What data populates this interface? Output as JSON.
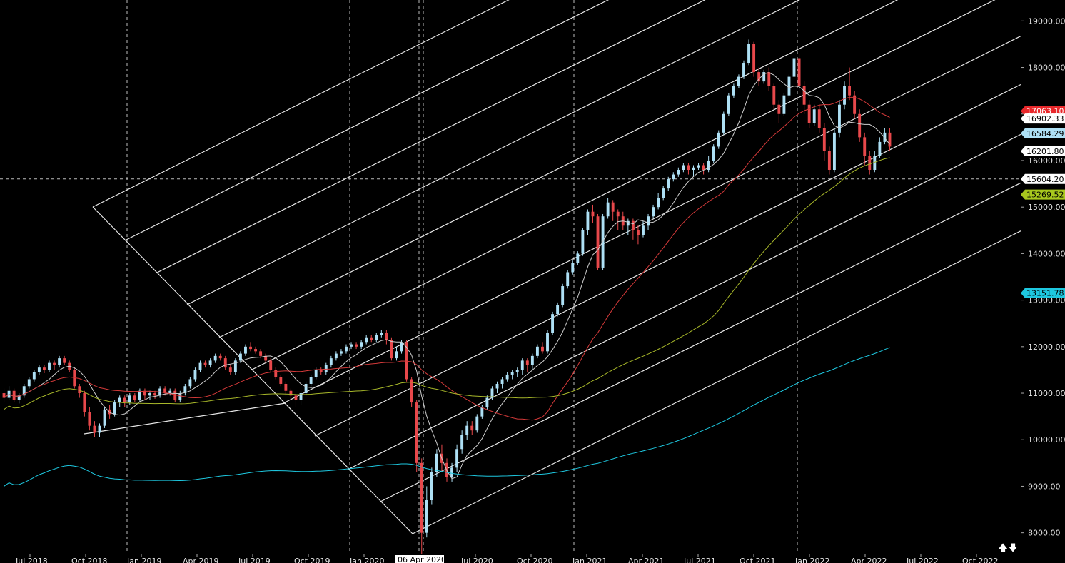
{
  "chart_data": {
    "type": "candlestick",
    "y_axis": {
      "ticks": [
        8000,
        9000,
        10000,
        11000,
        12000,
        13000,
        14000,
        15000,
        16000,
        17000,
        18000,
        19000
      ],
      "tick_labels": [
        "8000.00",
        "9000.00",
        "10000.00",
        "11000.00",
        "12000.00",
        "13000.00",
        "14000.00",
        "15000.00",
        "16000.00",
        "17000.00",
        "18000.00",
        "19000.00"
      ],
      "range": [
        7550,
        19450
      ]
    },
    "crosshair": {
      "price": 15604.2,
      "date_label": "06 Apr 2020"
    },
    "x_axis_labels": [
      {
        "slot": 0,
        "text": "Jul 2018"
      },
      {
        "slot": 1,
        "text": "Oct 2018"
      },
      {
        "slot": 2,
        "text": "Jan 2019"
      },
      {
        "slot": 3,
        "text": "Apr 2019"
      },
      {
        "slot": 4,
        "text": "Jul 2019"
      },
      {
        "slot": 5,
        "text": "Oct 2019"
      },
      {
        "slot": 6,
        "text": "Jan 2020"
      },
      {
        "slot": 8,
        "text": "Jul 2020"
      },
      {
        "slot": 9,
        "text": "Oct 2020"
      },
      {
        "slot": 10,
        "text": "Jan 2021"
      },
      {
        "slot": 11,
        "text": "Apr 2021"
      },
      {
        "slot": 12,
        "text": "Jul 2021"
      },
      {
        "slot": 13,
        "text": "Oct 2021"
      },
      {
        "slot": 14,
        "text": "Jan 2022"
      },
      {
        "slot": 15,
        "text": "Apr 2022"
      },
      {
        "slot": 16,
        "text": "Jul 2022"
      },
      {
        "slot": 17,
        "text": "Oct 2022"
      }
    ],
    "price_tags": [
      {
        "value": "17063.10",
        "price": 17063.1,
        "bg": "#e8282b",
        "fg": "#ffffff"
      },
      {
        "value": "16902.33",
        "price": 16902.33,
        "bg": "#ffffff",
        "fg": "#000000"
      },
      {
        "value": "16584.29",
        "price": 16584.29,
        "bg": "#aee0f5",
        "fg": "#000000"
      },
      {
        "value": "16201.80",
        "price": 16201.8,
        "bg": "#ffffff",
        "fg": "#000000"
      },
      {
        "value": "15604.20",
        "price": 15604.2,
        "bg": "#ffffff",
        "fg": "#000000"
      },
      {
        "value": "15269.52",
        "price": 15269.52,
        "bg": "#a8c81e",
        "fg": "#000000"
      },
      {
        "value": "13151.78",
        "price": 13151.78,
        "bg": "#1ec8e0",
        "fg": "#000000"
      }
    ],
    "candles_weekly_approx": [
      [
        11000,
        10900,
        11100,
        10800
      ],
      [
        10900,
        11050,
        11150,
        10850
      ],
      [
        11050,
        10850,
        11100,
        10800
      ],
      [
        10850,
        10950,
        11000,
        10780
      ],
      [
        10950,
        11150,
        11200,
        10900
      ],
      [
        11150,
        11300,
        11350,
        11100
      ],
      [
        11300,
        11450,
        11500,
        11250
      ],
      [
        11450,
        11550,
        11600,
        11400
      ],
      [
        11550,
        11500,
        11600,
        11430
      ],
      [
        11500,
        11650,
        11700,
        11450
      ],
      [
        11650,
        11600,
        11700,
        11500
      ],
      [
        11600,
        11750,
        11800,
        11550
      ],
      [
        11750,
        11650,
        11800,
        11600
      ],
      [
        11650,
        11500,
        11700,
        11450
      ],
      [
        11500,
        11150,
        11550,
        11100
      ],
      [
        11150,
        11000,
        11200,
        10900
      ],
      [
        11000,
        10600,
        11050,
        10500
      ],
      [
        10600,
        10300,
        10700,
        10200
      ],
      [
        10300,
        10150,
        10400,
        10050
      ],
      [
        10150,
        10300,
        10350,
        10050
      ],
      [
        10300,
        10650,
        10700,
        10250
      ],
      [
        10650,
        10550,
        10750,
        10450
      ],
      [
        10550,
        10800,
        10850,
        10500
      ],
      [
        10800,
        10900,
        10950,
        10700
      ],
      [
        10900,
        10800,
        10950,
        10700
      ],
      [
        10800,
        10950,
        11000,
        10750
      ],
      [
        10950,
        10850,
        11000,
        10800
      ],
      [
        10850,
        11050,
        11100,
        10800
      ],
      [
        11050,
        10950,
        11100,
        10850
      ],
      [
        10950,
        11000,
        11050,
        10850
      ],
      [
        11000,
        10950,
        11050,
        10880
      ],
      [
        10950,
        11100,
        11150,
        10900
      ],
      [
        11100,
        11000,
        11150,
        10950
      ],
      [
        11000,
        11050,
        11100,
        10950
      ],
      [
        11050,
        10850,
        11100,
        10800
      ],
      [
        10850,
        11000,
        11050,
        10800
      ],
      [
        11000,
        11150,
        11200,
        10950
      ],
      [
        11150,
        11300,
        11350,
        11100
      ],
      [
        11300,
        11500,
        11550,
        11250
      ],
      [
        11500,
        11650,
        11700,
        11450
      ],
      [
        11650,
        11600,
        11700,
        11550
      ],
      [
        11600,
        11700,
        11750,
        11550
      ],
      [
        11700,
        11800,
        11850,
        11650
      ],
      [
        11800,
        11750,
        11850,
        11700
      ],
      [
        11750,
        11550,
        11800,
        11500
      ],
      [
        11550,
        11450,
        11600,
        11400
      ],
      [
        11450,
        11700,
        11750,
        11400
      ],
      [
        11700,
        11850,
        11900,
        11650
      ],
      [
        11850,
        12000,
        12050,
        11800
      ],
      [
        12000,
        11950,
        12100,
        11900
      ],
      [
        11950,
        11900,
        12000,
        11850
      ],
      [
        11900,
        11800,
        11950,
        11750
      ],
      [
        11800,
        11700,
        11850,
        11650
      ],
      [
        11700,
        11500,
        11750,
        11450
      ],
      [
        11500,
        11350,
        11550,
        11300
      ],
      [
        11350,
        11200,
        11400,
        11150
      ],
      [
        11200,
        11050,
        11250,
        10950
      ],
      [
        11050,
        10950,
        11100,
        10850
      ],
      [
        10950,
        10850,
        11000,
        10700
      ],
      [
        10850,
        11000,
        11050,
        10750
      ],
      [
        11000,
        11200,
        11250,
        10950
      ],
      [
        11200,
        11350,
        11400,
        11150
      ],
      [
        11350,
        11500,
        11550,
        11300
      ],
      [
        11500,
        11450,
        11550,
        11400
      ],
      [
        11450,
        11600,
        11650,
        11400
      ],
      [
        11600,
        11750,
        11800,
        11550
      ],
      [
        11750,
        11850,
        11900,
        11700
      ],
      [
        11850,
        11900,
        11950,
        11800
      ],
      [
        11900,
        12000,
        12050,
        11850
      ],
      [
        12000,
        12050,
        12100,
        11950
      ],
      [
        12050,
        12000,
        12100,
        11950
      ],
      [
        12000,
        12100,
        12150,
        11950
      ],
      [
        12100,
        12200,
        12250,
        12050
      ],
      [
        12200,
        12150,
        12250,
        12100
      ],
      [
        12150,
        12250,
        12300,
        12100
      ],
      [
        12250,
        12300,
        12350,
        12200
      ],
      [
        12300,
        12150,
        12350,
        12050
      ],
      [
        12150,
        11750,
        12200,
        11700
      ],
      [
        11750,
        11900,
        12000,
        11700
      ],
      [
        11900,
        12100,
        12150,
        11850
      ],
      [
        12100,
        11300,
        12150,
        11250
      ],
      [
        11300,
        10800,
        11350,
        10700
      ],
      [
        10800,
        9500,
        10850,
        9300
      ],
      [
        9500,
        8000,
        9600,
        7550
      ],
      [
        8000,
        8700,
        9000,
        7900
      ],
      [
        8700,
        9300,
        9400,
        8600
      ],
      [
        9300,
        9700,
        9800,
        9200
      ],
      [
        9700,
        9500,
        9900,
        9300
      ],
      [
        9500,
        9200,
        9600,
        9100
      ],
      [
        9200,
        9400,
        9500,
        9100
      ],
      [
        9400,
        9800,
        9900,
        9300
      ],
      [
        9800,
        10100,
        10200,
        9700
      ],
      [
        10100,
        10300,
        10400,
        10000
      ],
      [
        10300,
        10200,
        10400,
        10100
      ],
      [
        10200,
        10500,
        10550,
        10150
      ],
      [
        10500,
        10700,
        10750,
        10450
      ],
      [
        10700,
        10900,
        10950,
        10650
      ],
      [
        10900,
        11100,
        11150,
        10850
      ],
      [
        11100,
        11200,
        11250,
        11000
      ],
      [
        11200,
        11300,
        11350,
        11100
      ],
      [
        11300,
        11400,
        11450,
        11250
      ],
      [
        11400,
        11450,
        11500,
        11300
      ],
      [
        11450,
        11500,
        11550,
        11350
      ],
      [
        11500,
        11700,
        11750,
        11400
      ],
      [
        11700,
        11600,
        11750,
        11450
      ],
      [
        11600,
        11800,
        11850,
        11500
      ],
      [
        11800,
        12000,
        12050,
        11750
      ],
      [
        12000,
        11900,
        12100,
        11850
      ],
      [
        11900,
        12300,
        12350,
        11850
      ],
      [
        12300,
        12700,
        12750,
        12250
      ],
      [
        12700,
        12900,
        12950,
        12650
      ],
      [
        12900,
        13300,
        13350,
        12850
      ],
      [
        13300,
        13600,
        13650,
        13250
      ],
      [
        13600,
        13800,
        13850,
        13550
      ],
      [
        13800,
        14000,
        14050,
        13750
      ],
      [
        14000,
        14500,
        14550,
        13950
      ],
      [
        14500,
        14900,
        14950,
        14400
      ],
      [
        14900,
        14800,
        15050,
        14650
      ],
      [
        14800,
        13700,
        14850,
        13650
      ],
      [
        13700,
        14800,
        14850,
        13650
      ],
      [
        14800,
        15100,
        15200,
        14750
      ],
      [
        15100,
        14900,
        15150,
        14700
      ],
      [
        14900,
        14800,
        14950,
        14500
      ],
      [
        14800,
        14600,
        14900,
        14500
      ],
      [
        14600,
        14700,
        14750,
        14400
      ],
      [
        14700,
        14500,
        14750,
        14300
      ],
      [
        14500,
        14400,
        14600,
        14200
      ],
      [
        14400,
        14600,
        14700,
        14350
      ],
      [
        14600,
        14800,
        14850,
        14500
      ],
      [
        14800,
        15000,
        15050,
        14750
      ],
      [
        15000,
        15200,
        15300,
        14950
      ],
      [
        15200,
        15400,
        15450,
        15150
      ],
      [
        15400,
        15600,
        15650,
        15350
      ],
      [
        15600,
        15700,
        15750,
        15550
      ],
      [
        15700,
        15800,
        15850,
        15650
      ],
      [
        15800,
        15900,
        15950,
        15750
      ],
      [
        15900,
        15800,
        15950,
        15700
      ],
      [
        15800,
        15850,
        15900,
        15650
      ],
      [
        15850,
        15900,
        15950,
        15800
      ],
      [
        15900,
        15800,
        15950,
        15700
      ],
      [
        15800,
        16000,
        16100,
        15750
      ],
      [
        16000,
        16300,
        16350,
        15950
      ],
      [
        16300,
        16600,
        16650,
        16250
      ],
      [
        16600,
        17000,
        17050,
        16550
      ],
      [
        17000,
        17400,
        17450,
        16950
      ],
      [
        17400,
        17600,
        17650,
        17350
      ],
      [
        17600,
        17800,
        17850,
        17550
      ],
      [
        17800,
        18100,
        18150,
        17750
      ],
      [
        18100,
        18500,
        18600,
        18050
      ],
      [
        18500,
        17900,
        18550,
        17800
      ],
      [
        17900,
        17700,
        18000,
        17600
      ],
      [
        17700,
        17900,
        17950,
        17650
      ],
      [
        17900,
        17600,
        18000,
        17500
      ],
      [
        17600,
        17200,
        17650,
        17100
      ],
      [
        17200,
        17000,
        17300,
        16800
      ],
      [
        17000,
        17400,
        17450,
        16950
      ],
      [
        17400,
        17800,
        17850,
        17350
      ],
      [
        17800,
        18200,
        18300,
        17750
      ],
      [
        18200,
        17600,
        18300,
        17500
      ],
      [
        17600,
        17200,
        17700,
        17000
      ],
      [
        17200,
        16800,
        17300,
        16700
      ],
      [
        16800,
        17100,
        17200,
        16750
      ],
      [
        17100,
        16700,
        17200,
        16600
      ],
      [
        16700,
        16200,
        16800,
        16000
      ],
      [
        16200,
        15800,
        16300,
        15700
      ],
      [
        15800,
        16600,
        16700,
        15750
      ],
      [
        16600,
        17200,
        17300,
        16500
      ],
      [
        17200,
        17600,
        17700,
        17100
      ],
      [
        17600,
        17400,
        18000,
        17300
      ],
      [
        17400,
        17000,
        17500,
        16900
      ],
      [
        17000,
        16500,
        17100,
        16400
      ],
      [
        16500,
        16100,
        16600,
        15900
      ],
      [
        16100,
        15800,
        16200,
        15700
      ],
      [
        15800,
        16100,
        16200,
        15750
      ],
      [
        16100,
        16400,
        16500,
        16050
      ],
      [
        16400,
        16600,
        16700,
        16350
      ],
      [
        16600,
        16300,
        16700,
        16200
      ]
    ]
  },
  "nav": {
    "up_symbol": "🡅",
    "down_symbol": "🡇"
  }
}
